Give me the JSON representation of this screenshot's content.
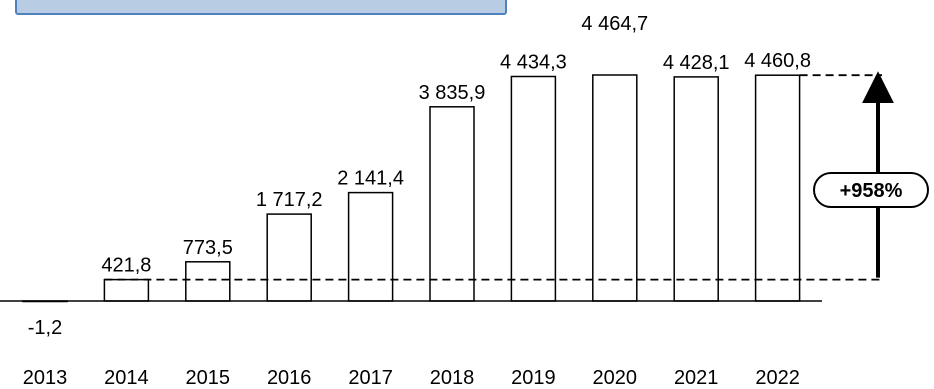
{
  "chart_data": {
    "type": "bar",
    "categories": [
      "2013",
      "2014",
      "2015",
      "2016",
      "2017",
      "2018",
      "2019",
      "2020",
      "2021",
      "2022"
    ],
    "values": [
      -1.2,
      421.8,
      773.5,
      1717.2,
      2141.4,
      3835.9,
      4434.3,
      4464.7,
      4428.1,
      4460.8
    ],
    "value_labels": [
      "-1,2",
      "421,8",
      "773,5",
      "1 717,2",
      "2 141,4",
      "3 835,9",
      "4 434,3",
      "4 464,7",
      "4 428,1",
      "4 460,8"
    ],
    "title": "",
    "xlabel": "",
    "ylabel": "",
    "ylim": [
      0,
      4464.7
    ],
    "grid": false,
    "legend": "none",
    "bar_fill": "#ffffff",
    "bar_stroke": "#000000",
    "banner_color": "#b8cce4",
    "banner_border_color": "#4f81bd",
    "growth_annotation": {
      "label": "+958%",
      "from_category": "2014",
      "to_category": "2022"
    }
  }
}
